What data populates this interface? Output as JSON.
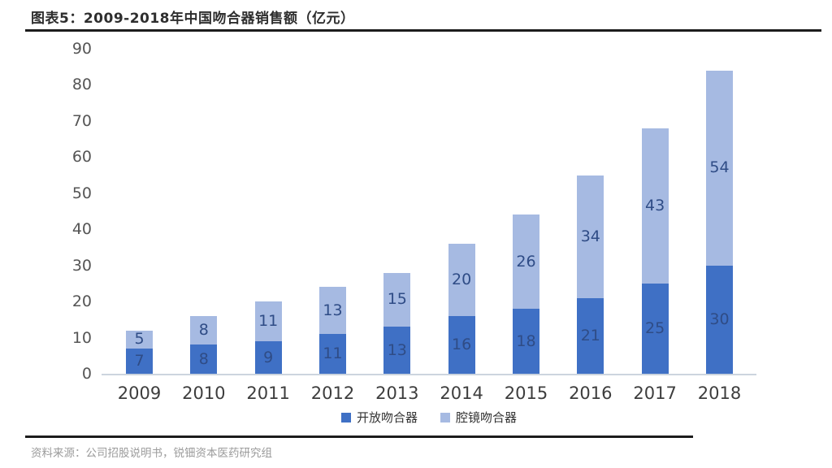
{
  "header": {
    "title": "图表5：2009-2018年中国吻合器销售额（亿元）"
  },
  "footer": {
    "source": "资料来源：公司招股说明书，锐钿资本医药研究组"
  },
  "chart_data": {
    "type": "bar",
    "stacked": true,
    "title": "图表5：2009-2018年中国吻合器销售额（亿元）",
    "unit": "亿元",
    "categories": [
      "2009",
      "2010",
      "2011",
      "2012",
      "2013",
      "2014",
      "2015",
      "2016",
      "2017",
      "2018"
    ],
    "series": [
      {
        "name": "开放吻合器",
        "color": "#3f70c5",
        "values": [
          7,
          8,
          9,
          11,
          13,
          16,
          18,
          21,
          25,
          30
        ]
      },
      {
        "name": "腔镜吻合器",
        "color": "#a6bae2",
        "values": [
          5,
          8,
          11,
          13,
          15,
          20,
          26,
          34,
          43,
          54
        ]
      }
    ],
    "ylim": [
      0,
      90
    ],
    "yticks": [
      0,
      10,
      20,
      30,
      40,
      50,
      60,
      70,
      80,
      90
    ],
    "grid": false,
    "legend_position": "bottom",
    "value_labels": "inside-center",
    "value_label_color": "#2f4c86"
  }
}
